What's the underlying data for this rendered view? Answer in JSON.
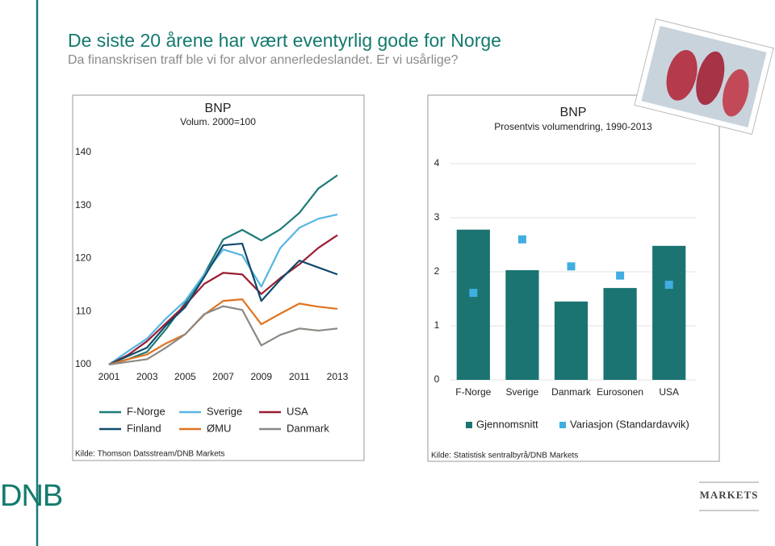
{
  "header": {
    "title": "De siste 20 årene har vært eventyrlig gode for Norge",
    "subtitle": "Da finanskrisen traff ble vi for alvor annerledeslandet. Er vi usårlige?",
    "brand": "DNB",
    "unit": "MARKETS"
  },
  "chart_data": [
    {
      "type": "line",
      "title": "BNP",
      "subtitle": "Volum. 2000=100",
      "x": [
        2001,
        2002,
        2003,
        2004,
        2005,
        2006,
        2007,
        2008,
        2009,
        2010,
        2011,
        2012,
        2013
      ],
      "xlim": [
        2001,
        2013
      ],
      "xticks": [
        2001,
        2003,
        2005,
        2007,
        2009,
        2011,
        2013
      ],
      "ylim": [
        100,
        140
      ],
      "yticks": [
        100,
        110,
        120,
        130,
        140
      ],
      "grid": false,
      "series": [
        {
          "name": "F-Norge",
          "color": "#1d7b78",
          "values": [
            100,
            101,
            102.4,
            106.7,
            111.6,
            117,
            123.6,
            125.4,
            123.4,
            125.5,
            128.6,
            133.2,
            135.7
          ]
        },
        {
          "name": "Sverige",
          "color": "#55b6e2",
          "values": [
            100,
            102.5,
            104.9,
            108.7,
            112,
            117,
            121.7,
            120.6,
            114.7,
            122,
            125.8,
            127.5,
            128.3
          ]
        },
        {
          "name": "USA",
          "color": "#9b1c32",
          "values": [
            100,
            101.8,
            104.4,
            107.8,
            111.2,
            115.2,
            117.3,
            117,
            113.3,
            116.3,
            118.9,
            122,
            124.4
          ]
        },
        {
          "name": "Finland",
          "color": "#0f4a6b",
          "values": [
            100,
            101.6,
            103.2,
            107.4,
            110.8,
            116.5,
            122.5,
            122.8,
            112,
            116,
            119.6,
            118.3,
            117
          ]
        },
        {
          "name": "ØMU",
          "color": "#e0731f",
          "values": [
            100,
            101,
            101.9,
            104,
            105.7,
            109.4,
            112,
            112.3,
            107.6,
            109.6,
            111.5,
            110.9,
            110.5
          ]
        },
        {
          "name": "Danmark",
          "color": "#8c8884",
          "values": [
            100,
            100.5,
            101,
            103.2,
            105.7,
            109.5,
            111,
            110.3,
            103.6,
            105.6,
            106.8,
            106.4,
            106.8
          ]
        }
      ],
      "source": "Kilde: Thomson Datsstream/DNB Markets"
    },
    {
      "type": "bar",
      "title": "BNP",
      "subtitle": "Prosentvis volumendring, 1990-2013",
      "categories": [
        "F-Norge",
        "Sverige",
        "Danmark",
        "Eurosonen",
        "USA"
      ],
      "ylim": [
        0,
        4
      ],
      "yticks": [
        0,
        1,
        2,
        3,
        4
      ],
      "grid": true,
      "series": [
        {
          "name": "Gjennomsnitt",
          "type": "bar",
          "color": "#1b7471",
          "values": [
            2.78,
            2.03,
            1.45,
            1.7,
            2.48
          ]
        },
        {
          "name": "Variasjon (Standardavvik)",
          "type": "scatter",
          "color": "#41aee0",
          "values": [
            1.61,
            2.6,
            2.1,
            1.93,
            1.76
          ]
        }
      ],
      "source": "Kilde: Statistisk sentralbyrå/DNB Markets"
    }
  ]
}
